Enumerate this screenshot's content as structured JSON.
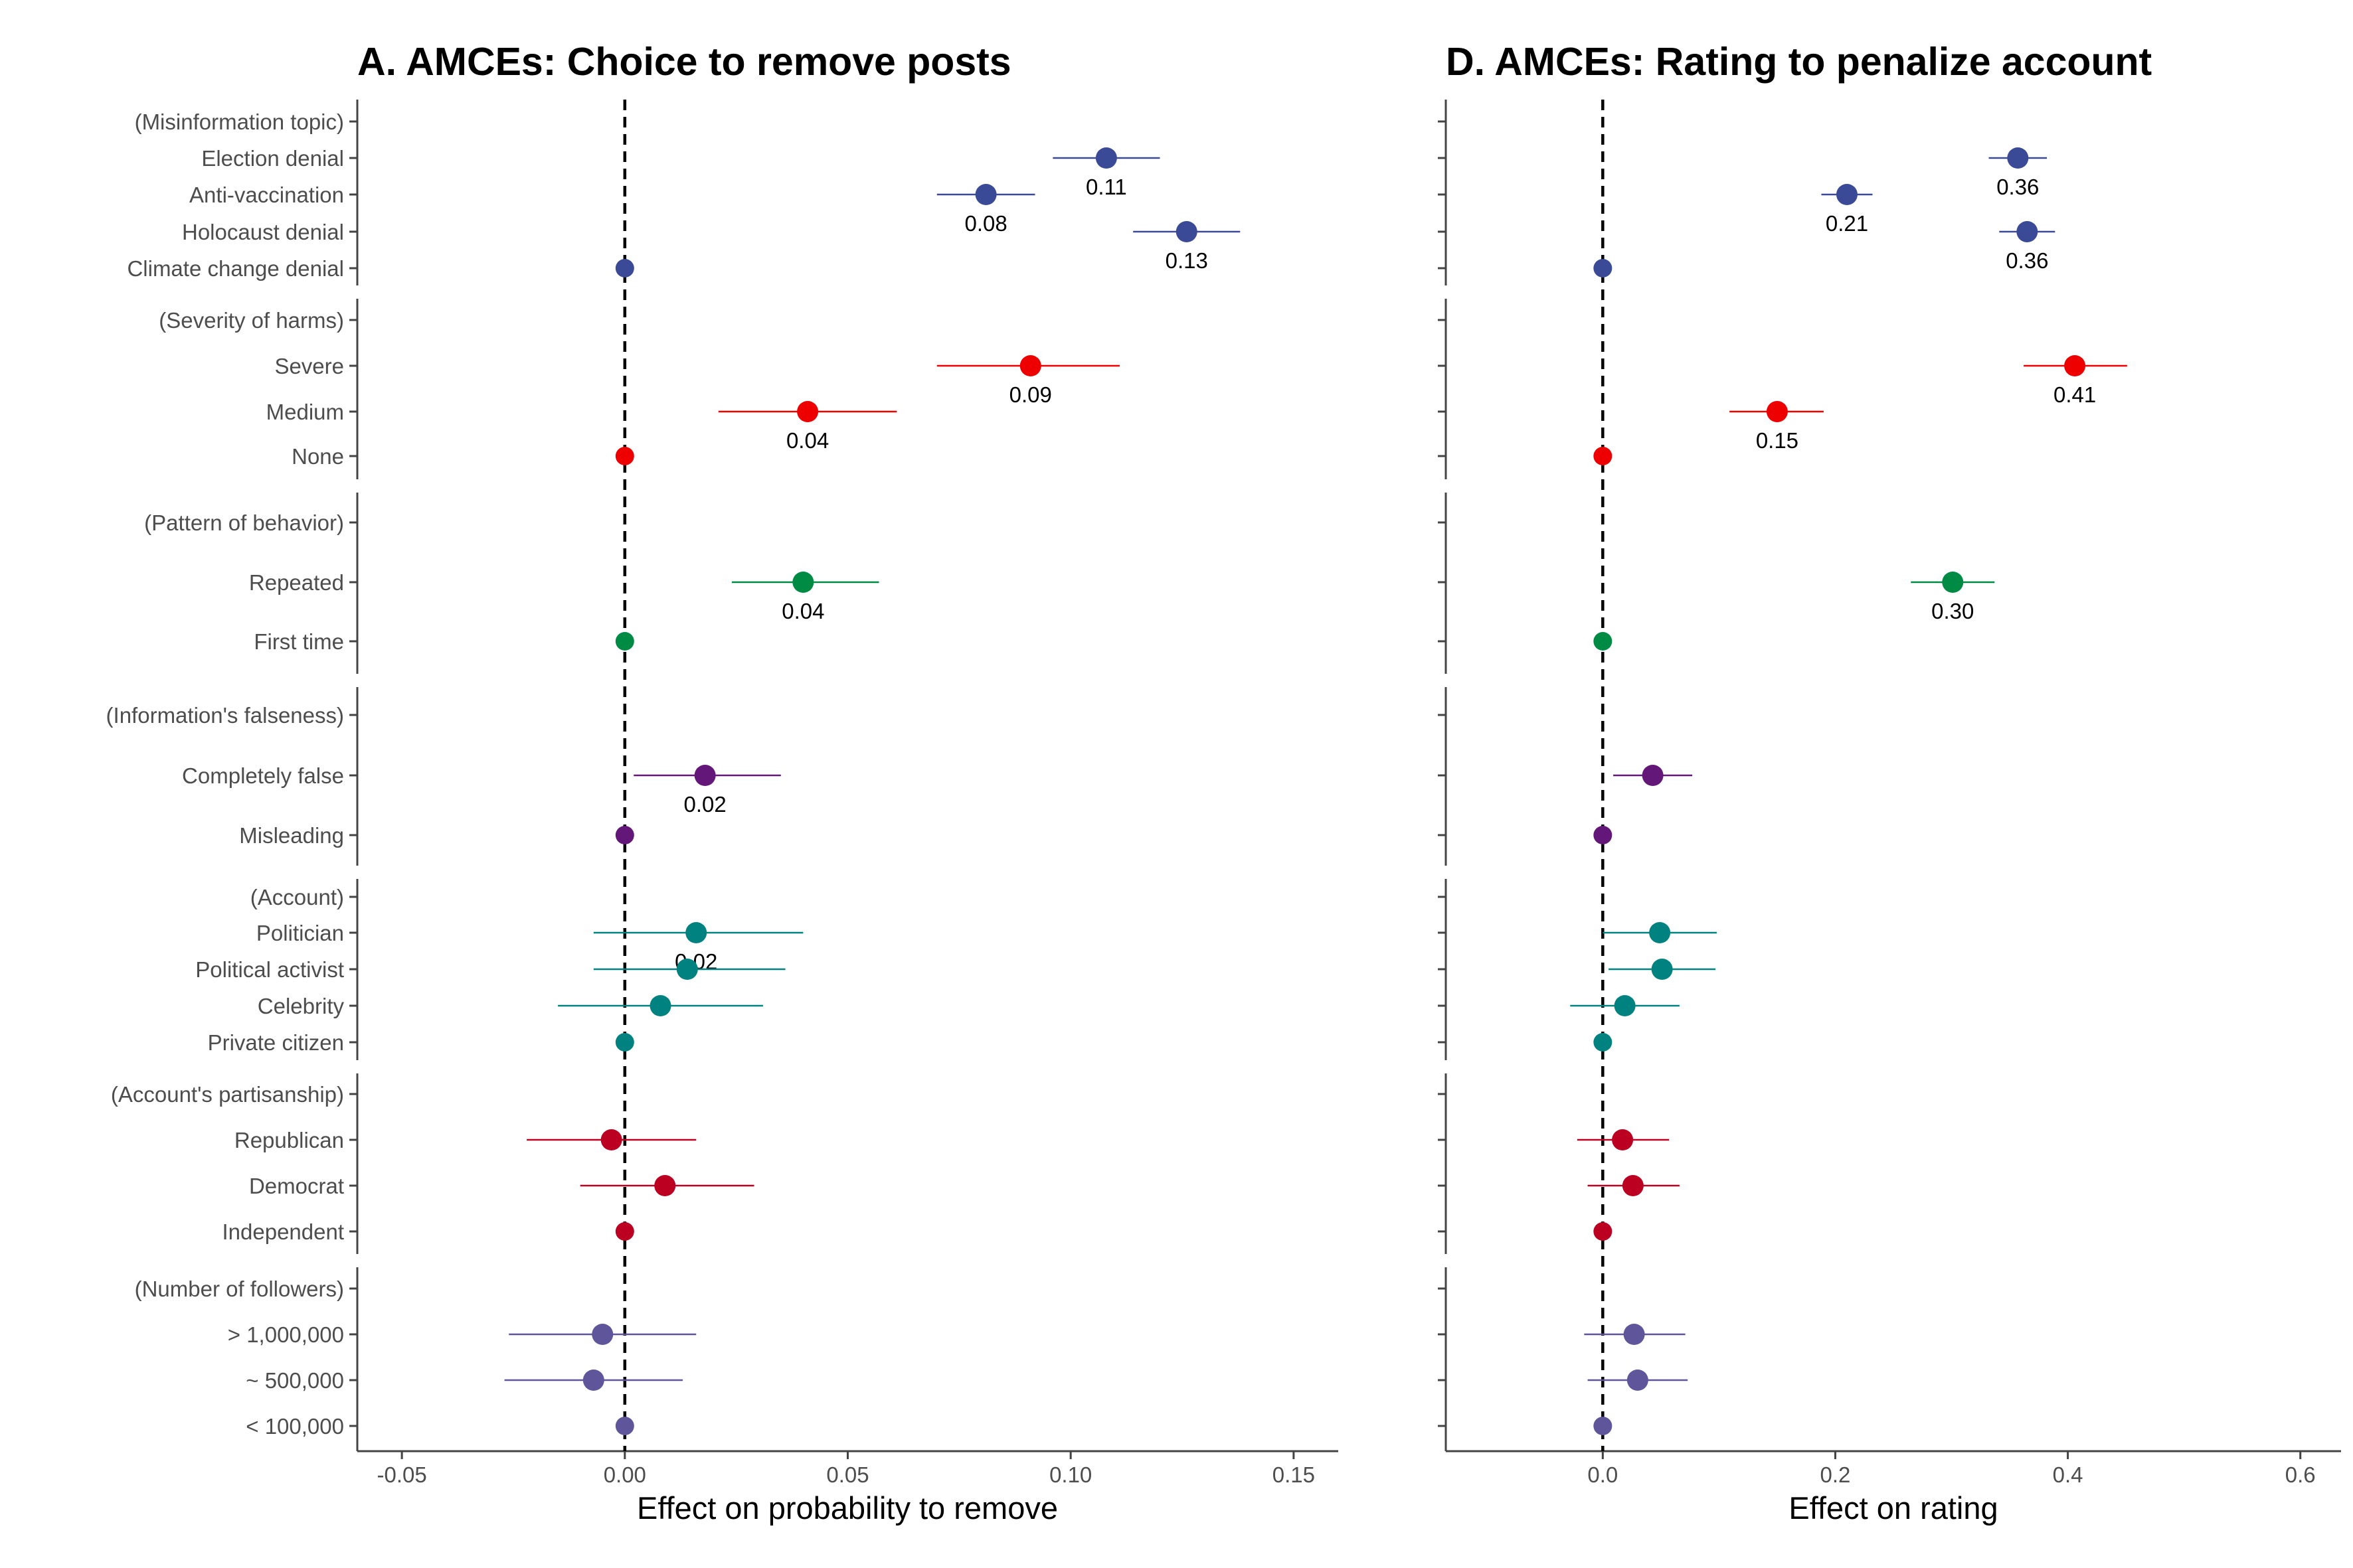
{
  "chart_data": [
    {
      "type": "scatter",
      "title": "A. AMCEs: Choice to remove posts",
      "xlabel": "Effect on probability to remove",
      "xlim": [
        -0.06,
        0.16
      ],
      "xticks": [
        "-0.05",
        "0.00",
        "0.05",
        "0.10",
        "0.15"
      ],
      "xtick_values": [
        -0.05,
        0.0,
        0.05,
        0.1,
        0.15
      ],
      "reference_line": 0,
      "grid": false,
      "groups": [
        {
          "name": "(Misinformation topic)",
          "color": "#3b4a96",
          "points": [
            {
              "label": "Election denial",
              "est": 0.108,
              "lo": 0.096,
              "hi": 0.12,
              "data_label": "0.11"
            },
            {
              "label": "Anti-vaccination",
              "est": 0.081,
              "lo": 0.07,
              "hi": 0.092,
              "data_label": "0.08"
            },
            {
              "label": "Holocaust denial",
              "est": 0.126,
              "lo": 0.114,
              "hi": 0.138,
              "data_label": "0.13"
            },
            {
              "label": "Climate change denial",
              "est": 0.0,
              "lo": 0.0,
              "hi": 0.0,
              "data_label": ""
            }
          ]
        },
        {
          "name": "(Severity of harms)",
          "color": "#ee0000",
          "points": [
            {
              "label": "Severe",
              "est": 0.091,
              "lo": 0.07,
              "hi": 0.111,
              "data_label": "0.09"
            },
            {
              "label": "Medium",
              "est": 0.041,
              "lo": 0.021,
              "hi": 0.061,
              "data_label": "0.04"
            },
            {
              "label": "None",
              "est": 0.0,
              "lo": 0.0,
              "hi": 0.0,
              "data_label": ""
            }
          ]
        },
        {
          "name": "(Pattern of behavior)",
          "color": "#008b45",
          "points": [
            {
              "label": "Repeated",
              "est": 0.04,
              "lo": 0.024,
              "hi": 0.057,
              "data_label": "0.04"
            },
            {
              "label": "First time",
              "est": 0.0,
              "lo": 0.0,
              "hi": 0.0,
              "data_label": ""
            }
          ]
        },
        {
          "name": "(Information's falseness)",
          "color": "#631879",
          "points": [
            {
              "label": "Completely false",
              "est": 0.018,
              "lo": 0.002,
              "hi": 0.035,
              "data_label": "0.02"
            },
            {
              "label": "Misleading",
              "est": 0.0,
              "lo": 0.0,
              "hi": 0.0,
              "data_label": ""
            }
          ]
        },
        {
          "name": "(Account)",
          "color": "#008280",
          "points": [
            {
              "label": "Politician",
              "est": 0.016,
              "lo": -0.007,
              "hi": 0.04,
              "data_label": "0.02"
            },
            {
              "label": "Political activist",
              "est": 0.014,
              "lo": -0.007,
              "hi": 0.036,
              "data_label": ""
            },
            {
              "label": "Celebrity",
              "est": 0.008,
              "lo": -0.015,
              "hi": 0.031,
              "data_label": ""
            },
            {
              "label": "Private citizen",
              "est": 0.0,
              "lo": 0.0,
              "hi": 0.0,
              "data_label": ""
            }
          ]
        },
        {
          "name": "(Account's partisanship)",
          "color": "#bb0021",
          "points": [
            {
              "label": "Republican",
              "est": -0.003,
              "lo": -0.022,
              "hi": 0.016,
              "data_label": ""
            },
            {
              "label": "Democrat",
              "est": 0.009,
              "lo": -0.01,
              "hi": 0.029,
              "data_label": ""
            },
            {
              "label": "Independent",
              "est": 0.0,
              "lo": 0.0,
              "hi": 0.0,
              "data_label": ""
            }
          ]
        },
        {
          "name": "(Number of followers)",
          "color": "#5f559b",
          "points": [
            {
              "label": "> 1,000,000",
              "est": -0.005,
              "lo": -0.026,
              "hi": 0.016,
              "data_label": ""
            },
            {
              "label": "~ 500,000",
              "est": -0.007,
              "lo": -0.027,
              "hi": 0.013,
              "data_label": ""
            },
            {
              "label": "< 100,000",
              "est": 0.0,
              "lo": 0.0,
              "hi": 0.0,
              "data_label": ""
            }
          ]
        }
      ]
    },
    {
      "type": "scatter",
      "title": "D. AMCEs: Rating to penalize account",
      "xlabel": "Effect on rating",
      "xlim": [
        -0.135,
        0.635
      ],
      "xticks": [
        "0.0",
        "0.2",
        "0.4",
        "0.6"
      ],
      "xtick_values": [
        0.0,
        0.2,
        0.4,
        0.6
      ],
      "reference_line": 0,
      "grid": false,
      "groups": [
        {
          "name": "(Misinformation topic)",
          "color": "#3b4a96",
          "points": [
            {
              "label": "Election denial",
              "est": 0.357,
              "lo": 0.332,
              "hi": 0.382,
              "data_label": "0.36"
            },
            {
              "label": "Anti-vaccination",
              "est": 0.21,
              "lo": 0.188,
              "hi": 0.232,
              "data_label": "0.21"
            },
            {
              "label": "Holocaust denial",
              "est": 0.365,
              "lo": 0.341,
              "hi": 0.389,
              "data_label": "0.36"
            },
            {
              "label": "Climate change denial",
              "est": 0.0,
              "lo": 0.0,
              "hi": 0.0,
              "data_label": ""
            }
          ]
        },
        {
          "name": "(Severity of harms)",
          "color": "#ee0000",
          "points": [
            {
              "label": "Severe",
              "est": 0.406,
              "lo": 0.362,
              "hi": 0.451,
              "data_label": "0.41"
            },
            {
              "label": "Medium",
              "est": 0.15,
              "lo": 0.109,
              "hi": 0.19,
              "data_label": "0.15"
            },
            {
              "label": "None",
              "est": 0.0,
              "lo": 0.0,
              "hi": 0.0,
              "data_label": ""
            }
          ]
        },
        {
          "name": "(Pattern of behavior)",
          "color": "#008b45",
          "points": [
            {
              "label": "Repeated",
              "est": 0.301,
              "lo": 0.265,
              "hi": 0.337,
              "data_label": "0.30"
            },
            {
              "label": "First time",
              "est": 0.0,
              "lo": 0.0,
              "hi": 0.0,
              "data_label": ""
            }
          ]
        },
        {
          "name": "(Information's falseness)",
          "color": "#631879",
          "points": [
            {
              "label": "Completely false",
              "est": 0.043,
              "lo": 0.009,
              "hi": 0.077,
              "data_label": ""
            },
            {
              "label": "Misleading",
              "est": 0.0,
              "lo": 0.0,
              "hi": 0.0,
              "data_label": ""
            }
          ]
        },
        {
          "name": "(Account)",
          "color": "#008280",
          "points": [
            {
              "label": "Politician",
              "est": 0.049,
              "lo": 0.0,
              "hi": 0.098,
              "data_label": ""
            },
            {
              "label": "Political activist",
              "est": 0.051,
              "lo": 0.005,
              "hi": 0.097,
              "data_label": ""
            },
            {
              "label": "Celebrity",
              "est": 0.019,
              "lo": -0.028,
              "hi": 0.066,
              "data_label": ""
            },
            {
              "label": "Private citizen",
              "est": 0.0,
              "lo": 0.0,
              "hi": 0.0,
              "data_label": ""
            }
          ]
        },
        {
          "name": "(Account's partisanship)",
          "color": "#bb0021",
          "points": [
            {
              "label": "Republican",
              "est": 0.017,
              "lo": -0.022,
              "hi": 0.057,
              "data_label": ""
            },
            {
              "label": "Democrat",
              "est": 0.026,
              "lo": -0.013,
              "hi": 0.066,
              "data_label": ""
            },
            {
              "label": "Independent",
              "est": 0.0,
              "lo": 0.0,
              "hi": 0.0,
              "data_label": ""
            }
          ]
        },
        {
          "name": "(Number of followers)",
          "color": "#5f559b",
          "points": [
            {
              "label": "> 1,000,000",
              "est": 0.027,
              "lo": -0.016,
              "hi": 0.071,
              "data_label": ""
            },
            {
              "label": "~ 500,000",
              "est": 0.03,
              "lo": -0.013,
              "hi": 0.073,
              "data_label": ""
            },
            {
              "label": "< 100,000",
              "est": 0.0,
              "lo": 0.0,
              "hi": 0.0,
              "data_label": ""
            }
          ]
        }
      ]
    }
  ]
}
